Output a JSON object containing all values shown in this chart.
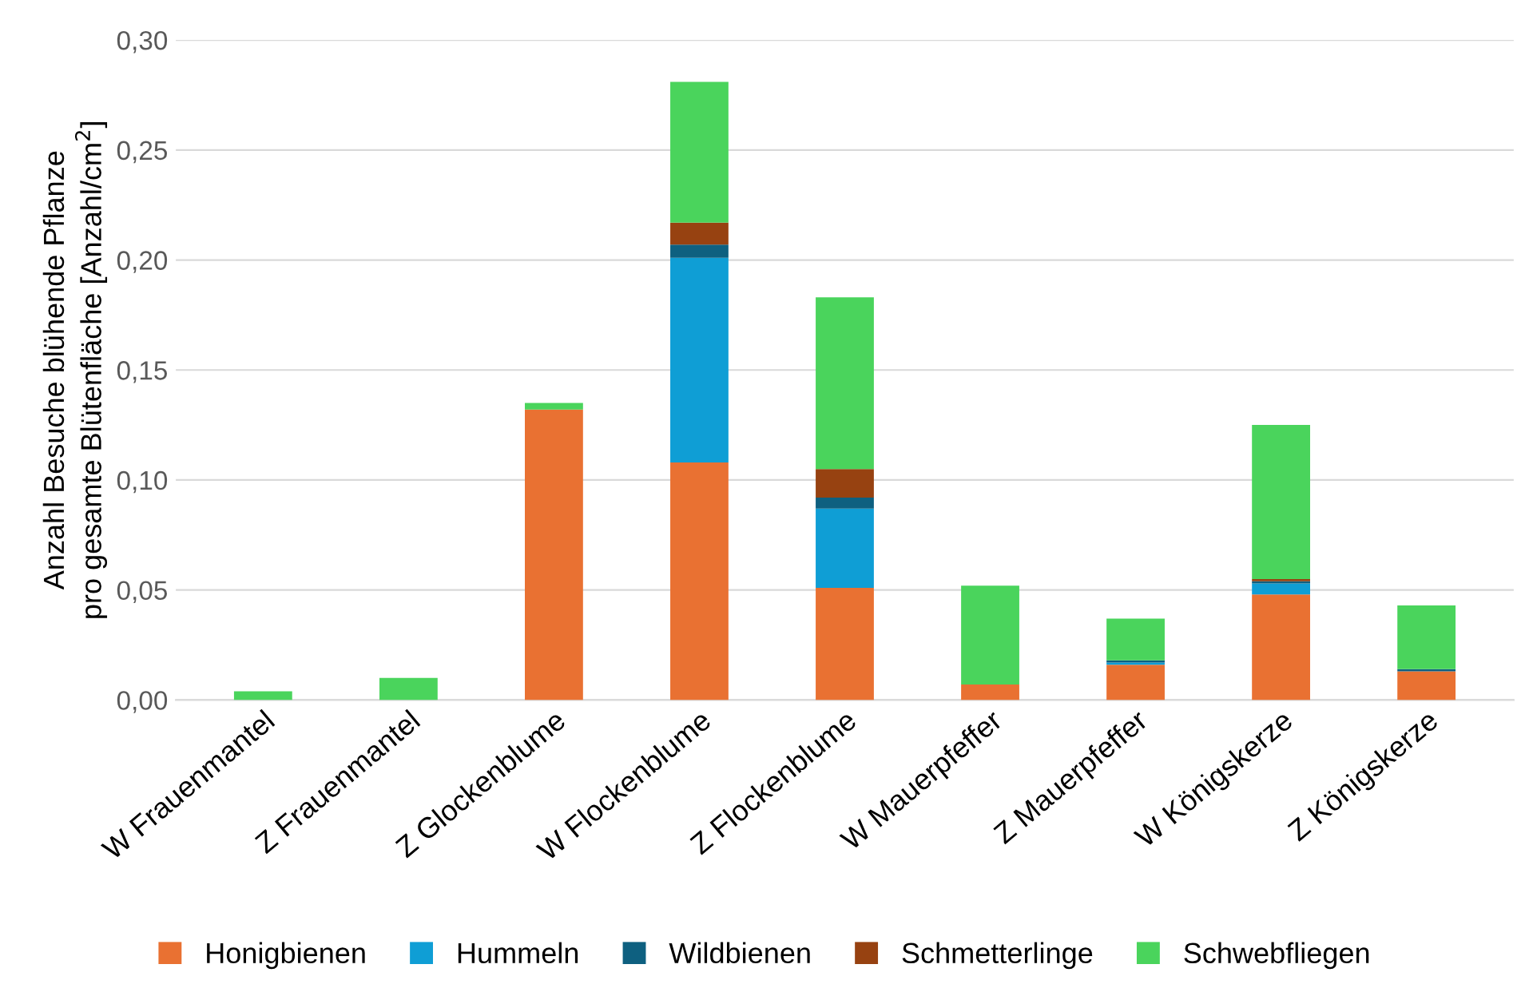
{
  "chart_data": {
    "type": "bar",
    "stacked": true,
    "ylabel": "Anzahl Besuche blühende Pflanze\npro gesamte Blütenfläche [Anzahl/cm$^{2}$]",
    "categories": [
      "W Frauenmantel",
      "Z Frauenmantel",
      "Z Glockenblume",
      "W Flockenblume",
      "Z Flockenblume",
      "W Mauerpfeffer",
      "Z Mauerpfeffer",
      "W Königskerze",
      "Z Königskerze"
    ],
    "series": [
      {
        "name": "Honigbienen",
        "color": "#e97132",
        "values": [
          0,
          0,
          0.132,
          0.108,
          0.051,
          0.007,
          0.016,
          0.048,
          0.013
        ]
      },
      {
        "name": "Hummeln",
        "color": "#0f9ed5",
        "values": [
          0,
          0,
          0,
          0.093,
          0.036,
          0,
          0.001,
          0.005,
          0
        ]
      },
      {
        "name": "Wildbienen",
        "color": "#0e6080",
        "values": [
          0,
          0,
          0,
          0.006,
          0.005,
          0,
          0.001,
          0.001,
          0.001
        ]
      },
      {
        "name": "Schmetterlinge",
        "color": "#974211",
        "values": [
          0,
          0,
          0,
          0.01,
          0.013,
          0,
          0,
          0.001,
          0
        ]
      },
      {
        "name": "Schwebfliegen",
        "color": "#4ad45c",
        "values": [
          0.004,
          0.01,
          0.003,
          0.064,
          0.078,
          0.045,
          0.019,
          0.07,
          0.029
        ]
      }
    ],
    "ylim": [
      0,
      0.3
    ],
    "yticks": [
      {
        "value": 0,
        "label": "0,00"
      },
      {
        "value": 0.05,
        "label": "0,05"
      },
      {
        "value": 0.1,
        "label": "0,10"
      },
      {
        "value": 0.15,
        "label": "0,15"
      },
      {
        "value": 0.2,
        "label": "0,20"
      },
      {
        "value": 0.25,
        "label": "0,25"
      },
      {
        "value": 0.3,
        "label": "0,30"
      }
    ],
    "grid": "y",
    "legend": "bottom"
  }
}
